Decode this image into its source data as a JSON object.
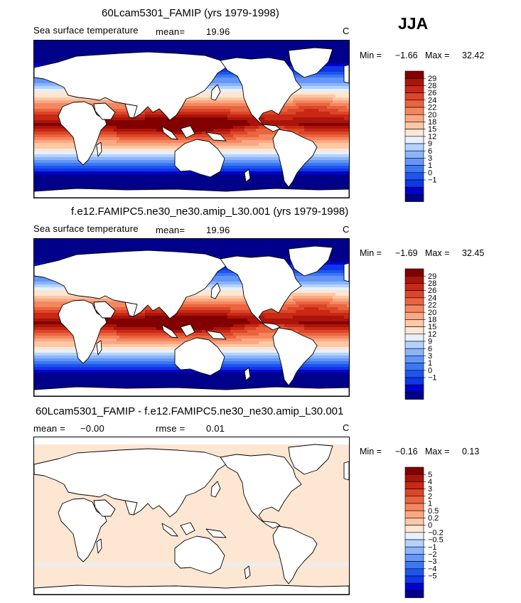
{
  "season": "JJA",
  "colors": {
    "sst_levels": [
      "#00008b",
      "#0000cd",
      "#0f37e6",
      "#1e55f0",
      "#3c78f5",
      "#6496fa",
      "#8cb4fc",
      "#b4d2fe",
      "#e6f0fe",
      "#fde6d2",
      "#fdc8a5",
      "#fba882",
      "#f5875f",
      "#eb6440",
      "#dc4628",
      "#c82814",
      "#aa140a",
      "#820000"
    ],
    "diff_levels": [
      "#00008b",
      "#0000cd",
      "#0f37e6",
      "#1e55f0",
      "#3c78f5",
      "#6496fa",
      "#8cb4fc",
      "#b4d2fe",
      "#e6f0fe",
      "#fde6d2",
      "#fdc8a5",
      "#fba882",
      "#f5875f",
      "#eb6440",
      "#dc4628",
      "#c82814",
      "#aa140a",
      "#820000"
    ],
    "land": "#ffffff",
    "coast": "#000000"
  },
  "chart_data": [
    {
      "type": "heatmap",
      "title": "60Lcam5301_FAMIP (yrs 1979-1998)",
      "variable": "Sea surface temperature",
      "mean_label": "mean=",
      "mean_value": "19.96",
      "units": "C",
      "min_label": "Min =",
      "min_value": "−1.66",
      "max_label": "Max =",
      "max_value": "32.42",
      "colorbar_ticks": [
        "29",
        "28",
        "26",
        "24",
        "22",
        "20",
        "18",
        "15",
        "12",
        "9",
        "6",
        "3",
        "1",
        "0",
        "−1"
      ],
      "field": "sst"
    },
    {
      "type": "heatmap",
      "title": "f.e12.FAMIPC5.ne30_ne30.amip_L30.001 (yrs 1979-1998)",
      "variable": "Sea surface temperature",
      "mean_label": "mean=",
      "mean_value": "19.96",
      "units": "C",
      "min_label": "Min =",
      "min_value": "−1.69",
      "max_label": "Max =",
      "max_value": "32.45",
      "colorbar_ticks": [
        "29",
        "28",
        "26",
        "24",
        "22",
        "20",
        "18",
        "15",
        "12",
        "9",
        "6",
        "3",
        "1",
        "0",
        "−1"
      ],
      "field": "sst"
    },
    {
      "type": "heatmap",
      "title": "60Lcam5301_FAMIP - f.e12.FAMIPC5.ne30_ne30.amip_L30.001",
      "mean_label": "mean =",
      "mean_value": "−0.00",
      "rmse_label": "rmse =",
      "rmse_value": "0.01",
      "units": "C",
      "min_label": "Min =",
      "min_value": "−0.16",
      "max_label": "Max =",
      "max_value": "0.13",
      "colorbar_ticks": [
        "5",
        "4",
        "3",
        "2",
        "1",
        "0.5",
        "0.2",
        "0",
        "−0.2",
        "−0.5",
        "−1",
        "−2",
        "−3",
        "−4",
        "−5"
      ],
      "field": "diff"
    }
  ]
}
